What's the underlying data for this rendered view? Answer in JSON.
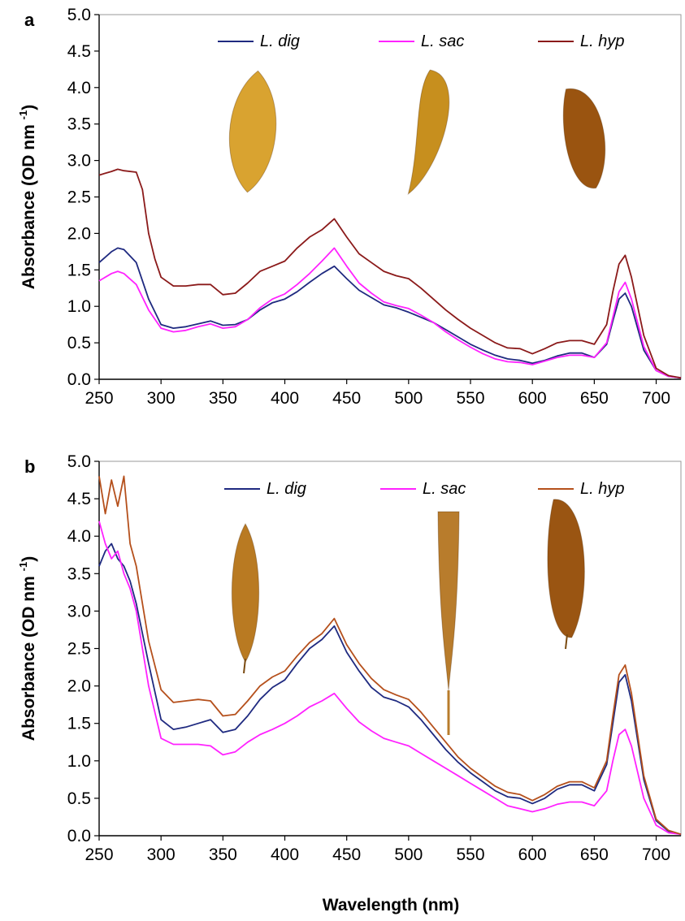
{
  "figure": {
    "xlabel": "Wavelength (nm)"
  },
  "chart_data": [
    {
      "type": "line",
      "panel_label": "a",
      "ylabel": {
        "main": "Absorbance (OD nm",
        "sup": "-1",
        "close": ")"
      },
      "xlabel": "",
      "xlim": [
        250,
        720
      ],
      "ylim": [
        0,
        5
      ],
      "xticks": [
        "250",
        "300",
        "350",
        "400",
        "450",
        "500",
        "550",
        "600",
        "650",
        "700"
      ],
      "yticks": [
        "0.0",
        "0.5",
        "1.0",
        "1.5",
        "2.0",
        "2.5",
        "3.0",
        "3.5",
        "4.0",
        "4.5",
        "5.0"
      ],
      "grid": false,
      "legend": "top",
      "series": [
        {
          "name": "L. dig",
          "color": "#1f2a80",
          "x": [
            250,
            260,
            265,
            270,
            280,
            290,
            300,
            310,
            320,
            330,
            340,
            350,
            360,
            370,
            380,
            390,
            400,
            410,
            420,
            430,
            440,
            450,
            460,
            470,
            480,
            490,
            500,
            510,
            520,
            530,
            540,
            550,
            560,
            570,
            580,
            590,
            600,
            610,
            620,
            630,
            640,
            650,
            660,
            665,
            670,
            675,
            680,
            690,
            700,
            710,
            720
          ],
          "y": [
            1.6,
            1.75,
            1.8,
            1.78,
            1.6,
            1.1,
            0.75,
            0.7,
            0.72,
            0.76,
            0.8,
            0.74,
            0.75,
            0.82,
            0.95,
            1.05,
            1.1,
            1.2,
            1.33,
            1.45,
            1.55,
            1.38,
            1.22,
            1.12,
            1.02,
            0.98,
            0.92,
            0.85,
            0.78,
            0.68,
            0.58,
            0.48,
            0.4,
            0.33,
            0.28,
            0.26,
            0.22,
            0.26,
            0.32,
            0.36,
            0.36,
            0.3,
            0.48,
            0.8,
            1.1,
            1.18,
            1.0,
            0.4,
            0.12,
            0.04,
            0.02
          ]
        },
        {
          "name": "L. sac",
          "color": "#ff22ff",
          "x": [
            250,
            260,
            265,
            270,
            280,
            290,
            300,
            310,
            320,
            330,
            340,
            350,
            360,
            370,
            380,
            390,
            400,
            410,
            420,
            430,
            440,
            450,
            460,
            470,
            480,
            490,
            500,
            510,
            520,
            530,
            540,
            550,
            560,
            570,
            580,
            590,
            600,
            610,
            620,
            630,
            640,
            650,
            660,
            665,
            670,
            675,
            680,
            690,
            700,
            710,
            720
          ],
          "y": [
            1.35,
            1.45,
            1.48,
            1.45,
            1.3,
            0.95,
            0.7,
            0.65,
            0.67,
            0.72,
            0.76,
            0.7,
            0.72,
            0.82,
            0.98,
            1.1,
            1.17,
            1.3,
            1.45,
            1.62,
            1.8,
            1.55,
            1.32,
            1.18,
            1.06,
            1.01,
            0.97,
            0.88,
            0.78,
            0.65,
            0.54,
            0.44,
            0.35,
            0.28,
            0.24,
            0.23,
            0.2,
            0.25,
            0.3,
            0.33,
            0.33,
            0.3,
            0.5,
            0.85,
            1.2,
            1.33,
            1.1,
            0.45,
            0.12,
            0.04,
            0.02
          ]
        },
        {
          "name": "L. hyp",
          "color": "#8b1a1a",
          "x": [
            250,
            260,
            265,
            270,
            280,
            285,
            290,
            295,
            300,
            310,
            320,
            330,
            340,
            350,
            360,
            370,
            380,
            390,
            400,
            410,
            420,
            430,
            440,
            450,
            460,
            470,
            480,
            490,
            500,
            510,
            520,
            530,
            540,
            550,
            560,
            570,
            580,
            590,
            600,
            610,
            620,
            630,
            640,
            650,
            660,
            665,
            670,
            675,
            680,
            690,
            700,
            710,
            720
          ],
          "y": [
            2.8,
            2.85,
            2.88,
            2.86,
            2.84,
            2.6,
            2.0,
            1.65,
            1.4,
            1.28,
            1.28,
            1.3,
            1.3,
            1.16,
            1.18,
            1.32,
            1.48,
            1.55,
            1.62,
            1.8,
            1.95,
            2.05,
            2.2,
            1.95,
            1.72,
            1.6,
            1.48,
            1.42,
            1.38,
            1.25,
            1.1,
            0.95,
            0.82,
            0.7,
            0.6,
            0.5,
            0.43,
            0.42,
            0.35,
            0.42,
            0.5,
            0.53,
            0.53,
            0.48,
            0.75,
            1.2,
            1.58,
            1.7,
            1.4,
            0.6,
            0.15,
            0.05,
            0.02
          ]
        }
      ],
      "annotations": [
        {
          "type": "image",
          "subject": "L. dig blade",
          "color": "#d9a330"
        },
        {
          "type": "image",
          "subject": "L. sac blade",
          "color": "#c78f1e"
        },
        {
          "type": "image",
          "subject": "L. hyp blade",
          "color": "#9a5410"
        }
      ]
    },
    {
      "type": "line",
      "panel_label": "b",
      "ylabel": {
        "main": "Absorbance (OD nm",
        "sup": "-1",
        "close": ")"
      },
      "xlabel": "Wavelength (nm)",
      "xlim": [
        250,
        720
      ],
      "ylim": [
        0,
        5
      ],
      "xticks": [
        "250",
        "300",
        "350",
        "400",
        "450",
        "500",
        "550",
        "600",
        "650",
        "700"
      ],
      "yticks": [
        "0.0",
        "0.5",
        "1.0",
        "1.5",
        "2.0",
        "2.5",
        "3.0",
        "3.5",
        "4.0",
        "4.5",
        "5.0"
      ],
      "grid": false,
      "legend": "top",
      "series": [
        {
          "name": "L. dig",
          "color": "#1f2a80",
          "x": [
            250,
            255,
            260,
            265,
            270,
            275,
            280,
            290,
            300,
            310,
            320,
            330,
            340,
            350,
            360,
            370,
            380,
            390,
            400,
            410,
            420,
            430,
            440,
            450,
            460,
            470,
            480,
            490,
            500,
            510,
            520,
            530,
            540,
            550,
            560,
            570,
            580,
            590,
            600,
            610,
            620,
            630,
            640,
            650,
            660,
            665,
            670,
            675,
            680,
            690,
            700,
            710,
            720
          ],
          "y": [
            3.6,
            3.8,
            3.9,
            3.7,
            3.6,
            3.4,
            3.1,
            2.3,
            1.55,
            1.42,
            1.45,
            1.5,
            1.55,
            1.38,
            1.42,
            1.6,
            1.82,
            1.98,
            2.08,
            2.3,
            2.5,
            2.62,
            2.8,
            2.45,
            2.2,
            1.98,
            1.85,
            1.8,
            1.72,
            1.55,
            1.35,
            1.15,
            0.98,
            0.84,
            0.72,
            0.6,
            0.52,
            0.5,
            0.43,
            0.5,
            0.62,
            0.68,
            0.68,
            0.6,
            0.95,
            1.5,
            2.05,
            2.15,
            1.8,
            0.75,
            0.2,
            0.06,
            0.02
          ]
        },
        {
          "name": "L. sac",
          "color": "#ff22ff",
          "x": [
            250,
            255,
            260,
            265,
            270,
            275,
            280,
            290,
            300,
            310,
            320,
            330,
            340,
            350,
            360,
            370,
            380,
            390,
            400,
            410,
            420,
            430,
            440,
            450,
            460,
            470,
            480,
            490,
            500,
            510,
            520,
            530,
            540,
            550,
            560,
            570,
            580,
            590,
            600,
            610,
            620,
            630,
            640,
            650,
            660,
            665,
            670,
            675,
            680,
            690,
            700,
            710,
            720
          ],
          "y": [
            4.2,
            3.9,
            3.7,
            3.8,
            3.5,
            3.3,
            3.0,
            2.0,
            1.3,
            1.22,
            1.22,
            1.22,
            1.2,
            1.08,
            1.12,
            1.25,
            1.35,
            1.42,
            1.5,
            1.6,
            1.72,
            1.8,
            1.9,
            1.7,
            1.52,
            1.4,
            1.3,
            1.25,
            1.2,
            1.1,
            1.0,
            0.9,
            0.8,
            0.7,
            0.6,
            0.5,
            0.4,
            0.36,
            0.32,
            0.36,
            0.42,
            0.45,
            0.45,
            0.4,
            0.6,
            1.0,
            1.35,
            1.42,
            1.2,
            0.5,
            0.14,
            0.04,
            0.02
          ]
        },
        {
          "name": "L. hyp",
          "color": "#b5501c",
          "x": [
            250,
            255,
            260,
            265,
            270,
            275,
            280,
            290,
            300,
            310,
            320,
            330,
            340,
            350,
            360,
            370,
            380,
            390,
            400,
            410,
            420,
            430,
            440,
            450,
            460,
            470,
            480,
            490,
            500,
            510,
            520,
            530,
            540,
            550,
            560,
            570,
            580,
            590,
            600,
            610,
            620,
            630,
            640,
            650,
            660,
            665,
            670,
            675,
            680,
            690,
            700,
            710,
            720
          ],
          "y": [
            4.8,
            4.3,
            4.75,
            4.4,
            4.8,
            3.9,
            3.6,
            2.6,
            1.95,
            1.78,
            1.8,
            1.82,
            1.8,
            1.6,
            1.62,
            1.8,
            2.0,
            2.12,
            2.2,
            2.4,
            2.58,
            2.7,
            2.9,
            2.55,
            2.3,
            2.1,
            1.95,
            1.88,
            1.82,
            1.65,
            1.45,
            1.25,
            1.05,
            0.9,
            0.78,
            0.66,
            0.58,
            0.55,
            0.47,
            0.55,
            0.66,
            0.72,
            0.72,
            0.64,
            1.0,
            1.6,
            2.15,
            2.28,
            1.9,
            0.8,
            0.22,
            0.07,
            0.02
          ]
        }
      ],
      "annotations": [
        {
          "type": "image",
          "subject": "L. dig blade",
          "color": "#b97a22"
        },
        {
          "type": "image",
          "subject": "L. sac blade",
          "color": "#b87c2c"
        },
        {
          "type": "image",
          "subject": "L. hyp blade",
          "color": "#9a5512"
        }
      ]
    }
  ]
}
